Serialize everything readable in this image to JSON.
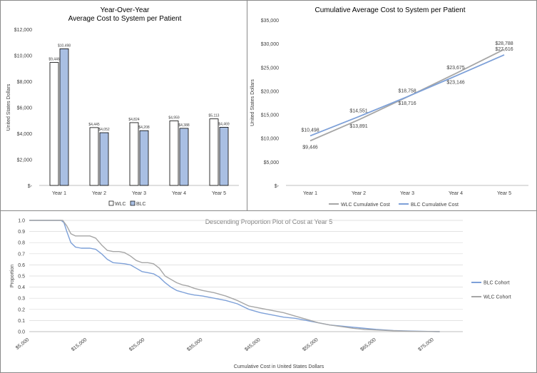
{
  "chart_data": [
    {
      "type": "bar",
      "title": "Year-Over-Year",
      "subtitle": "Average Cost to System per Patient",
      "ylabel": "United States Dollars",
      "xlabel": "",
      "ylim": [
        0,
        12000
      ],
      "yticks": [
        0,
        2000,
        4000,
        6000,
        8000,
        10000,
        12000
      ],
      "ytick_labels": [
        "$-",
        "$2,000",
        "$4,000",
        "$6,000",
        "$8,000",
        "$10,000",
        "$12,000"
      ],
      "categories": [
        "Year 1",
        "Year 2",
        "Year 3",
        "Year 4",
        "Year 5"
      ],
      "series": [
        {
          "name": "WLC",
          "color": "#ffffff",
          "stroke": "#000000",
          "values": [
            9446,
            4445,
            4824,
            4959,
            5113
          ],
          "labels": [
            "$9,446",
            "$4,445",
            "$4,824",
            "$4,959",
            "$5,113"
          ]
        },
        {
          "name": "BLC",
          "color": "#a9bfe3",
          "stroke": "#000000",
          "values": [
            10498,
            4052,
            4208,
            4388,
            4469
          ],
          "labels": [
            "$10,498",
            "$4,052",
            "$4,208",
            "$4,388",
            "$4,469"
          ]
        }
      ],
      "grid": false,
      "legend": "bottom"
    },
    {
      "type": "line",
      "title": "Cumulative Average Cost to System per Patient",
      "ylabel": "United States Dollars",
      "xlabel": "",
      "ylim": [
        0,
        35000
      ],
      "yticks": [
        0,
        5000,
        10000,
        15000,
        20000,
        25000,
        30000,
        35000
      ],
      "ytick_labels": [
        "$-",
        "$5,000",
        "$10,000",
        "$15,000",
        "$20,000",
        "$25,000",
        "$30,000",
        "$35,000"
      ],
      "categories": [
        "Year 1",
        "Year 2",
        "Year 3",
        "Year 4",
        "Year 5"
      ],
      "series": [
        {
          "name": "WLC Cumulative Cost",
          "color": "#a6a6a6",
          "values": [
            9446,
            13891,
            18716,
            23675,
            28788
          ],
          "labels": [
            "$9,446",
            "$13,891",
            "$18,716",
            "$23,675",
            "$28,788"
          ]
        },
        {
          "name": "BLC Cumulative Cost",
          "color": "#7da0d8",
          "values": [
            10498,
            14551,
            18758,
            23146,
            27616
          ],
          "labels": [
            "$10,498",
            "$14,551",
            "$18,758",
            "$23,146",
            "$27,616"
          ]
        }
      ],
      "grid": false,
      "legend": "bottom"
    },
    {
      "type": "line",
      "title": "Descending Proportion Plot of Cost at Year 5",
      "xlabel": "Cumulative Cost in United States Dollars",
      "ylabel": "Proportion",
      "xlim": [
        5000,
        80000
      ],
      "ylim": [
        0,
        1.0
      ],
      "xticks": [
        5000,
        15000,
        25000,
        35000,
        45000,
        55000,
        65000,
        75000
      ],
      "xtick_labels": [
        "$5,000",
        "$15,000",
        "$25,000",
        "$35,000",
        "$45,000",
        "$55,000",
        "$65,000",
        "$75,000"
      ],
      "yticks": [
        0,
        0.1,
        0.2,
        0.3,
        0.4,
        0.5,
        0.6,
        0.7,
        0.8,
        0.9,
        1.0
      ],
      "ytick_labels": [
        "0.0",
        "0.1",
        "0.2",
        "0.3",
        "0.4",
        "0.5",
        "0.6",
        "0.7",
        "0.8",
        "0.9",
        "1.0"
      ],
      "grid": true,
      "legend": "right",
      "series": [
        {
          "name": "BLC Cohort",
          "color": "#7da0d8",
          "x": [
            5000,
            10500,
            11000,
            11500,
            12200,
            13000,
            14000,
            15500,
            16500,
            17500,
            18500,
            19500,
            20500,
            21500,
            22500,
            23500,
            24500,
            25500,
            26500,
            27500,
            28500,
            29500,
            30500,
            31500,
            32500,
            33500,
            35000,
            37000,
            39000,
            41000,
            43000,
            45000,
            47000,
            49000,
            51000,
            53000,
            55000,
            57000,
            59000,
            61000,
            63000,
            65000,
            68000,
            71000,
            74000,
            76000
          ],
          "y": [
            1.0,
            1.0,
            0.98,
            0.9,
            0.8,
            0.76,
            0.75,
            0.75,
            0.74,
            0.7,
            0.65,
            0.62,
            0.615,
            0.61,
            0.6,
            0.57,
            0.54,
            0.53,
            0.52,
            0.49,
            0.44,
            0.4,
            0.37,
            0.355,
            0.34,
            0.33,
            0.32,
            0.3,
            0.28,
            0.25,
            0.2,
            0.17,
            0.15,
            0.13,
            0.12,
            0.1,
            0.08,
            0.06,
            0.05,
            0.04,
            0.03,
            0.02,
            0.01,
            0.005,
            0.002,
            0.0
          ]
        },
        {
          "name": "WLC Cohort",
          "color": "#a6a6a6",
          "x": [
            5000,
            10800,
            11500,
            12200,
            13000,
            14000,
            15500,
            16500,
            17500,
            18500,
            19500,
            20500,
            21500,
            22500,
            23500,
            24500,
            25500,
            26500,
            27500,
            28500,
            29500,
            30500,
            31500,
            32500,
            33500,
            35000,
            37000,
            39000,
            41000,
            43000,
            45000,
            47000,
            49000,
            51000,
            53000,
            55000,
            57000,
            59000,
            61000,
            63000,
            65000,
            68000,
            71000,
            74000,
            76000
          ],
          "y": [
            1.0,
            1.0,
            0.95,
            0.88,
            0.86,
            0.86,
            0.86,
            0.84,
            0.78,
            0.73,
            0.72,
            0.72,
            0.71,
            0.68,
            0.64,
            0.62,
            0.62,
            0.61,
            0.57,
            0.5,
            0.47,
            0.44,
            0.42,
            0.41,
            0.39,
            0.37,
            0.35,
            0.32,
            0.28,
            0.23,
            0.21,
            0.19,
            0.17,
            0.14,
            0.11,
            0.08,
            0.06,
            0.045,
            0.03,
            0.02,
            0.015,
            0.008,
            0.003,
            0.001,
            0.0
          ]
        }
      ]
    }
  ]
}
